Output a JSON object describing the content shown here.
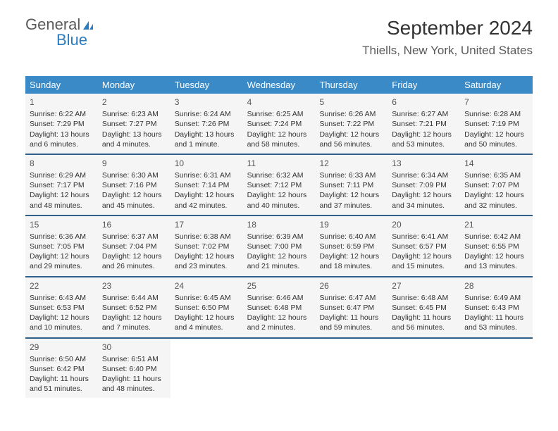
{
  "logo": {
    "text1": "General",
    "text2": "Blue"
  },
  "title": "September 2024",
  "subtitle": "Thiells, New York, United States",
  "colors": {
    "header_bg": "#3a8ac8",
    "header_text": "#ffffff",
    "week_border": "#2f5f8a",
    "cell_bg": "#f5f5f5",
    "text": "#333333",
    "logo_gray": "#5a5a5a",
    "logo_blue": "#2b7bbf"
  },
  "dayNames": [
    "Sunday",
    "Monday",
    "Tuesday",
    "Wednesday",
    "Thursday",
    "Friday",
    "Saturday"
  ],
  "weeks": [
    [
      {
        "n": "1",
        "sr": "Sunrise: 6:22 AM",
        "ss": "Sunset: 7:29 PM",
        "dl": "Daylight: 13 hours and 6 minutes."
      },
      {
        "n": "2",
        "sr": "Sunrise: 6:23 AM",
        "ss": "Sunset: 7:27 PM",
        "dl": "Daylight: 13 hours and 4 minutes."
      },
      {
        "n": "3",
        "sr": "Sunrise: 6:24 AM",
        "ss": "Sunset: 7:26 PM",
        "dl": "Daylight: 13 hours and 1 minute."
      },
      {
        "n": "4",
        "sr": "Sunrise: 6:25 AM",
        "ss": "Sunset: 7:24 PM",
        "dl": "Daylight: 12 hours and 58 minutes."
      },
      {
        "n": "5",
        "sr": "Sunrise: 6:26 AM",
        "ss": "Sunset: 7:22 PM",
        "dl": "Daylight: 12 hours and 56 minutes."
      },
      {
        "n": "6",
        "sr": "Sunrise: 6:27 AM",
        "ss": "Sunset: 7:21 PM",
        "dl": "Daylight: 12 hours and 53 minutes."
      },
      {
        "n": "7",
        "sr": "Sunrise: 6:28 AM",
        "ss": "Sunset: 7:19 PM",
        "dl": "Daylight: 12 hours and 50 minutes."
      }
    ],
    [
      {
        "n": "8",
        "sr": "Sunrise: 6:29 AM",
        "ss": "Sunset: 7:17 PM",
        "dl": "Daylight: 12 hours and 48 minutes."
      },
      {
        "n": "9",
        "sr": "Sunrise: 6:30 AM",
        "ss": "Sunset: 7:16 PM",
        "dl": "Daylight: 12 hours and 45 minutes."
      },
      {
        "n": "10",
        "sr": "Sunrise: 6:31 AM",
        "ss": "Sunset: 7:14 PM",
        "dl": "Daylight: 12 hours and 42 minutes."
      },
      {
        "n": "11",
        "sr": "Sunrise: 6:32 AM",
        "ss": "Sunset: 7:12 PM",
        "dl": "Daylight: 12 hours and 40 minutes."
      },
      {
        "n": "12",
        "sr": "Sunrise: 6:33 AM",
        "ss": "Sunset: 7:11 PM",
        "dl": "Daylight: 12 hours and 37 minutes."
      },
      {
        "n": "13",
        "sr": "Sunrise: 6:34 AM",
        "ss": "Sunset: 7:09 PM",
        "dl": "Daylight: 12 hours and 34 minutes."
      },
      {
        "n": "14",
        "sr": "Sunrise: 6:35 AM",
        "ss": "Sunset: 7:07 PM",
        "dl": "Daylight: 12 hours and 32 minutes."
      }
    ],
    [
      {
        "n": "15",
        "sr": "Sunrise: 6:36 AM",
        "ss": "Sunset: 7:05 PM",
        "dl": "Daylight: 12 hours and 29 minutes."
      },
      {
        "n": "16",
        "sr": "Sunrise: 6:37 AM",
        "ss": "Sunset: 7:04 PM",
        "dl": "Daylight: 12 hours and 26 minutes."
      },
      {
        "n": "17",
        "sr": "Sunrise: 6:38 AM",
        "ss": "Sunset: 7:02 PM",
        "dl": "Daylight: 12 hours and 23 minutes."
      },
      {
        "n": "18",
        "sr": "Sunrise: 6:39 AM",
        "ss": "Sunset: 7:00 PM",
        "dl": "Daylight: 12 hours and 21 minutes."
      },
      {
        "n": "19",
        "sr": "Sunrise: 6:40 AM",
        "ss": "Sunset: 6:59 PM",
        "dl": "Daylight: 12 hours and 18 minutes."
      },
      {
        "n": "20",
        "sr": "Sunrise: 6:41 AM",
        "ss": "Sunset: 6:57 PM",
        "dl": "Daylight: 12 hours and 15 minutes."
      },
      {
        "n": "21",
        "sr": "Sunrise: 6:42 AM",
        "ss": "Sunset: 6:55 PM",
        "dl": "Daylight: 12 hours and 13 minutes."
      }
    ],
    [
      {
        "n": "22",
        "sr": "Sunrise: 6:43 AM",
        "ss": "Sunset: 6:53 PM",
        "dl": "Daylight: 12 hours and 10 minutes."
      },
      {
        "n": "23",
        "sr": "Sunrise: 6:44 AM",
        "ss": "Sunset: 6:52 PM",
        "dl": "Daylight: 12 hours and 7 minutes."
      },
      {
        "n": "24",
        "sr": "Sunrise: 6:45 AM",
        "ss": "Sunset: 6:50 PM",
        "dl": "Daylight: 12 hours and 4 minutes."
      },
      {
        "n": "25",
        "sr": "Sunrise: 6:46 AM",
        "ss": "Sunset: 6:48 PM",
        "dl": "Daylight: 12 hours and 2 minutes."
      },
      {
        "n": "26",
        "sr": "Sunrise: 6:47 AM",
        "ss": "Sunset: 6:47 PM",
        "dl": "Daylight: 11 hours and 59 minutes."
      },
      {
        "n": "27",
        "sr": "Sunrise: 6:48 AM",
        "ss": "Sunset: 6:45 PM",
        "dl": "Daylight: 11 hours and 56 minutes."
      },
      {
        "n": "28",
        "sr": "Sunrise: 6:49 AM",
        "ss": "Sunset: 6:43 PM",
        "dl": "Daylight: 11 hours and 53 minutes."
      }
    ],
    [
      {
        "n": "29",
        "sr": "Sunrise: 6:50 AM",
        "ss": "Sunset: 6:42 PM",
        "dl": "Daylight: 11 hours and 51 minutes."
      },
      {
        "n": "30",
        "sr": "Sunrise: 6:51 AM",
        "ss": "Sunset: 6:40 PM",
        "dl": "Daylight: 11 hours and 48 minutes."
      },
      null,
      null,
      null,
      null,
      null
    ]
  ]
}
